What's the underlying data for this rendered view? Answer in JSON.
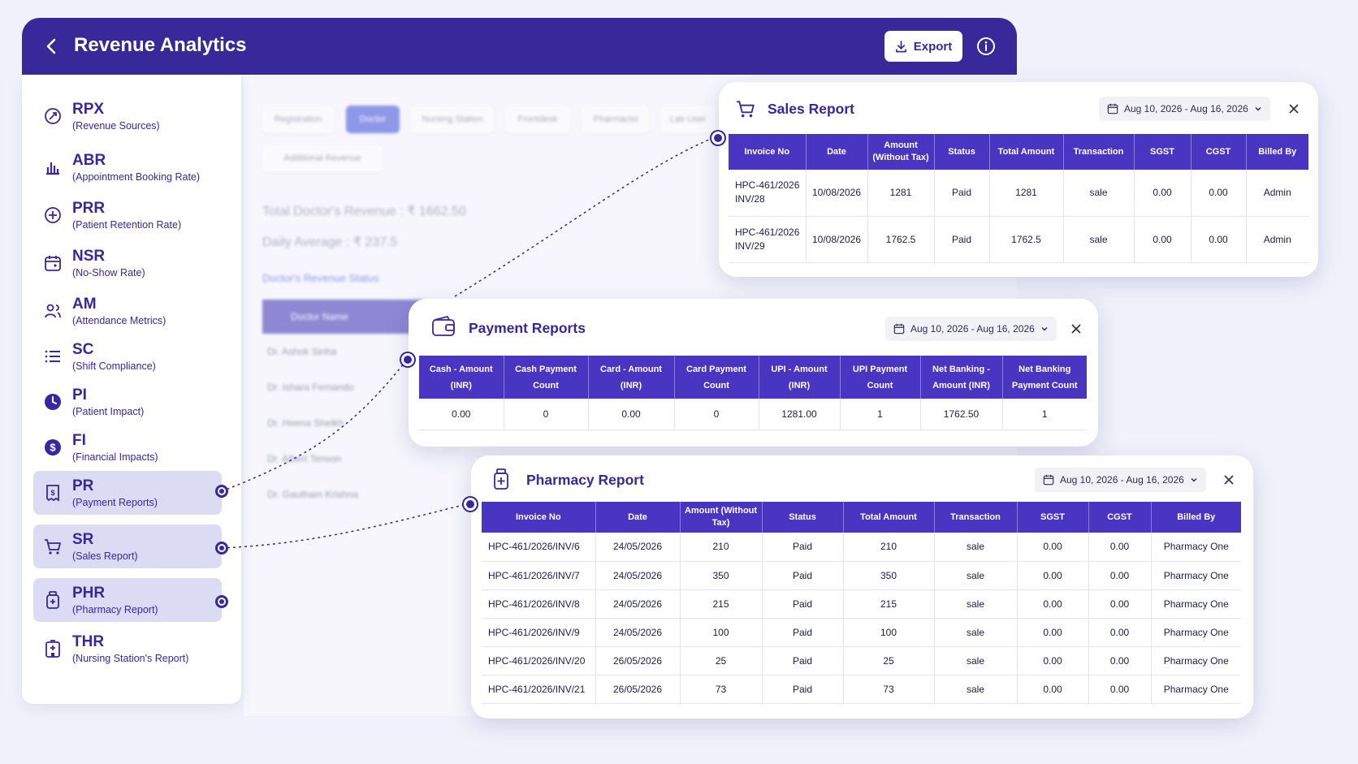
{
  "header": {
    "title": "Revenue Analytics",
    "export_label": "Export"
  },
  "background": {
    "tabs": [
      "Registration",
      "Doctor",
      "Nursing Station",
      "Frontdesk",
      "Pharmacist",
      "Lab User",
      "Additional Revenue"
    ],
    "total_revenue": "Total Doctor's Revenue : ₹ 1662.50",
    "daily_average": "Daily Average : ₹ 237.5",
    "status_link": "Doctor's Revenue Status",
    "table_header": "Doctor Name",
    "doctors": [
      "Dr. Ashok Sinha",
      "Dr. Ishara Fernando",
      "Dr. Heena Sheikh",
      "Dr. Albert Tenson",
      "Dr. Gautham Krishna"
    ]
  },
  "sidebar": {
    "items": [
      {
        "abbr": "RPX",
        "desc": "(Revenue Sources)",
        "icon": "revenue-icon"
      },
      {
        "abbr": "ABR",
        "desc": "(Appointment Booking Rate)",
        "icon": "bar-chart-icon"
      },
      {
        "abbr": "PRR",
        "desc": "(Patient Retention Rate)",
        "icon": "retention-icon"
      },
      {
        "abbr": "NSR",
        "desc": "(No-Show Rate)",
        "icon": "calendar-icon"
      },
      {
        "abbr": "AM",
        "desc": "(Attendance Metrics)",
        "icon": "users-icon"
      },
      {
        "abbr": "SC",
        "desc": "(Shift Compliance)",
        "icon": "list-icon"
      },
      {
        "abbr": "PI",
        "desc": "(Patient Impact)",
        "icon": "clock-icon"
      },
      {
        "abbr": "FI",
        "desc": "(Financial Impacts)",
        "icon": "dollar-icon"
      },
      {
        "abbr": "PR",
        "desc": "(Payment Reports)",
        "icon": "receipt-icon"
      },
      {
        "abbr": "SR",
        "desc": "(Sales Report)",
        "icon": "cart-icon"
      },
      {
        "abbr": "PHR",
        "desc": "(Pharmacy Report)",
        "icon": "medicine-bottle-icon"
      },
      {
        "abbr": "THR",
        "desc": "(Nursing Station's Report)",
        "icon": "hospital-icon"
      }
    ]
  },
  "sales_report": {
    "title": "Sales Report",
    "date_range": "Aug 10, 2026 - Aug 16, 2026",
    "columns": [
      "Invoice No",
      "Date",
      "Amount (Without Tax)",
      "Status",
      "Total Amount",
      "Transaction",
      "SGST",
      "CGST",
      "Billed By"
    ],
    "rows": [
      [
        "HPC-461/2026 INV/28",
        "10/08/2026",
        "1281",
        "Paid",
        "1281",
        "sale",
        "0.00",
        "0.00",
        "Admin"
      ],
      [
        "HPC-461/2026 INV/29",
        "10/08/2026",
        "1762.5",
        "Paid",
        "1762.5",
        "sale",
        "0.00",
        "0.00",
        "Admin"
      ]
    ]
  },
  "payment_reports": {
    "title": "Payment Reports",
    "date_range": "Aug 10, 2026 - Aug 16, 2026",
    "columns": [
      "Cash - Amount (INR)",
      "Cash Payment Count",
      "Card - Amount (INR)",
      "Card Payment Count",
      "UPI - Amount (INR)",
      "UPI Payment Count",
      "Net Banking - Amount (INR)",
      "Net Banking Payment Count"
    ],
    "rows": [
      [
        "0.00",
        "0",
        "0.00",
        "0",
        "1281.00",
        "1",
        "1762.50",
        "1"
      ]
    ]
  },
  "pharmacy_report": {
    "title": "Pharmacy Report",
    "date_range": "Aug 10, 2026 - Aug 16, 2026",
    "columns": [
      "Invoice No",
      "Date",
      "Amount (Without Tax)",
      "Status",
      "Total Amount",
      "Transaction",
      "SGST",
      "CGST",
      "Billed By"
    ],
    "rows": [
      [
        "HPC-461/2026/INV/6",
        "24/05/2026",
        "210",
        "Paid",
        "210",
        "sale",
        "0.00",
        "0.00",
        "Pharmacy One"
      ],
      [
        "HPC-461/2026/INV/7",
        "24/05/2026",
        "350",
        "Paid",
        "350",
        "sale",
        "0.00",
        "0.00",
        "Pharmacy One"
      ],
      [
        "HPC-461/2026/INV/8",
        "24/05/2026",
        "215",
        "Paid",
        "215",
        "sale",
        "0.00",
        "0.00",
        "Pharmacy One"
      ],
      [
        "HPC-461/2026/INV/9",
        "24/05/2026",
        "100",
        "Paid",
        "100",
        "sale",
        "0.00",
        "0.00",
        "Pharmacy One"
      ],
      [
        "HPC-461/2026/INV/20",
        "26/05/2026",
        "25",
        "Paid",
        "25",
        "sale",
        "0.00",
        "0.00",
        "Pharmacy One"
      ],
      [
        "HPC-461/2026/INV/21",
        "26/05/2026",
        "73",
        "Paid",
        "73",
        "sale",
        "0.00",
        "0.00",
        "Pharmacy One"
      ]
    ]
  },
  "colors": {
    "primary": "#38289a",
    "table_header": "#4a35c3",
    "active_item": "#dcdbf4"
  }
}
